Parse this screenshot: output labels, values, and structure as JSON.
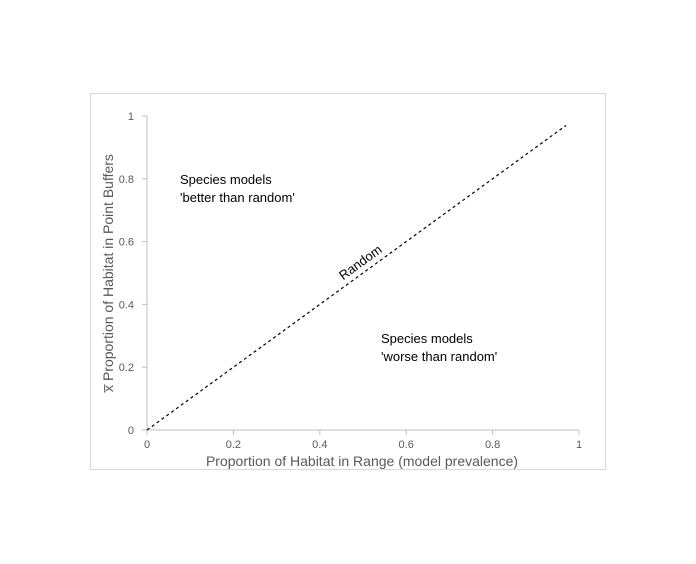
{
  "chart_data": {
    "type": "line",
    "title": "",
    "xlabel": "Proportion  of Habitat in Range (model prevalence)",
    "ylabel": "x̅  Proportion  of Habitat in Point Buffers",
    "xlim": [
      0,
      1
    ],
    "ylim": [
      0,
      1
    ],
    "x_ticks": [
      "0",
      "0.2",
      "0.4",
      "0.6",
      "0.8",
      "1"
    ],
    "y_ticks": [
      "0",
      "0.2",
      "0.4",
      "0.6",
      "0.8",
      "1"
    ],
    "grid": false,
    "series": [
      {
        "name": "Random",
        "x": [
          0,
          0.97
        ],
        "y": [
          0,
          0.97
        ],
        "style": "dashed",
        "color": "#000000"
      }
    ],
    "annotations": {
      "upper_line1": "Species models",
      "upper_line2": "'better than random'",
      "lower_line1": "Species models",
      "lower_line2": "'worse than random'"
    }
  },
  "colors": {
    "axis": "#bfbfbf",
    "text_muted": "#595959",
    "frame": "#d9d9d9"
  }
}
